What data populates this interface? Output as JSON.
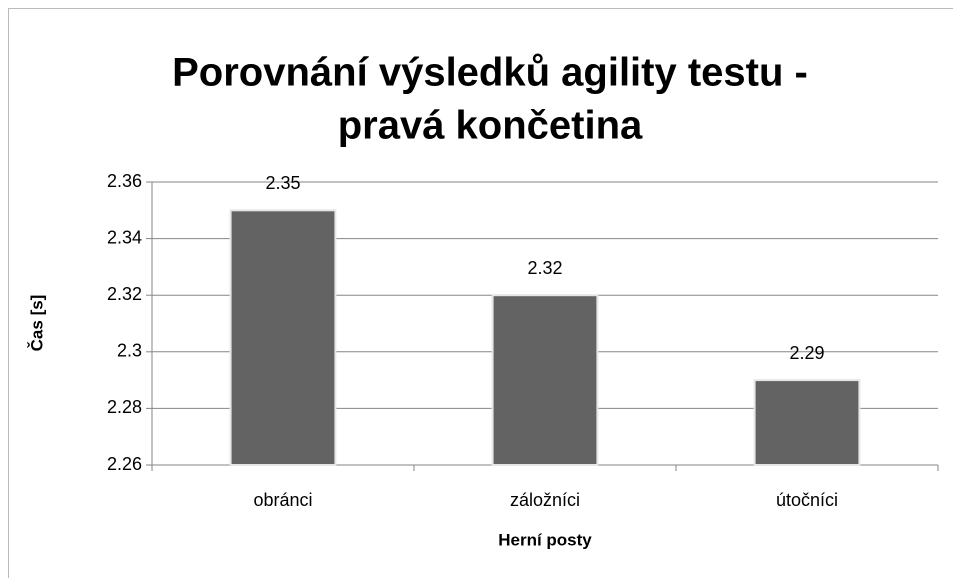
{
  "chart_data": {
    "type": "bar",
    "title": [
      "Porovnání výsledků agility testu -",
      "pravá končetina"
    ],
    "x_label": "Herní posty",
    "y_label": "Čas [s]",
    "categories": [
      "obránci",
      "záložníci",
      "útočníci"
    ],
    "values": [
      2.35,
      2.32,
      2.29
    ],
    "color": "#636363",
    "ylim": [
      2.26,
      2.36
    ],
    "yticks": [
      2.26,
      2.28,
      2.3,
      2.32,
      2.34,
      2.36
    ],
    "grid": true
  }
}
